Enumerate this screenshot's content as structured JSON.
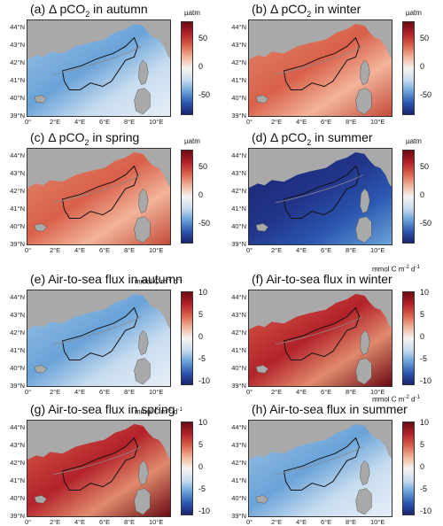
{
  "colors": {
    "land": "#a9a9a9",
    "cmap": [
      "#1a2470",
      "#2a56b0",
      "#6aa3d8",
      "#c8dcef",
      "#f7f3f0",
      "#f2b49a",
      "#d9604a",
      "#b3222a",
      "#6b0a14"
    ]
  },
  "panels": [
    {
      "id": "a",
      "title_prefix": "(a) Δ pCO",
      "title_sub": "2",
      "title_suffix": " in autumn",
      "unit_html": "µatm",
      "ticks": [
        "50",
        "0",
        "-50"
      ],
      "tone": "blue-light"
    },
    {
      "id": "b",
      "title_prefix": "(b) Δ pCO",
      "title_sub": "2",
      "title_suffix": " in winter",
      "unit_html": "µatm",
      "ticks": [
        "50",
        "0",
        "-50"
      ],
      "tone": "red-mid"
    },
    {
      "id": "c",
      "title_prefix": "(c) Δ pCO",
      "title_sub": "2",
      "title_suffix": " in spring",
      "unit_html": "µatm",
      "ticks": [
        "50",
        "0",
        "-50"
      ],
      "tone": "red-mid"
    },
    {
      "id": "d",
      "title_prefix": "(d) Δ pCO",
      "title_sub": "2",
      "title_suffix": " in summer",
      "unit_html": "µatm",
      "ticks": [
        "50",
        "0",
        "-50"
      ],
      "tone": "blue-dark"
    },
    {
      "id": "e",
      "title_prefix": "(e) Air-to-sea flux in autumn",
      "title_sub": "",
      "title_suffix": "",
      "unit_html": "mmol C m<sup>-2</sup> d<sup>-1</sup>",
      "ticks": [
        "10",
        "5",
        "0",
        "-5",
        "-10"
      ],
      "tone": "blue-light"
    },
    {
      "id": "f",
      "title_prefix": "(f) Air-to-sea flux in winter",
      "title_sub": "",
      "title_suffix": "",
      "unit_html": "mmol C m<sup>-2</sup> d<sup>-1</sup>",
      "ticks": [
        "10",
        "5",
        "0",
        "-5",
        "-10"
      ],
      "tone": "red-strong"
    },
    {
      "id": "g",
      "title_prefix": "(g) Air-to-sea flux in spring",
      "title_sub": "",
      "title_suffix": "",
      "unit_html": "mmol C m<sup>-2</sup> d<sup>-1</sup>",
      "ticks": [
        "10",
        "5",
        "0",
        "-5",
        "-10"
      ],
      "tone": "red-strong"
    },
    {
      "id": "h",
      "title_prefix": "(h) Air-to-sea flux in summer",
      "title_sub": "",
      "title_suffix": "",
      "unit_html": "mmol C m<sup>-2</sup> d<sup>-1</sup>",
      "ticks": [
        "10",
        "5",
        "0",
        "-5",
        "-10"
      ],
      "tone": "blue-light"
    }
  ],
  "lat_labels": [
    "44°N",
    "43°N",
    "42°N",
    "41°N",
    "40°N",
    "39°N"
  ],
  "lon_labels": [
    "0°",
    "2°E",
    "4°E",
    "6°E",
    "8°E",
    "10°E"
  ]
}
